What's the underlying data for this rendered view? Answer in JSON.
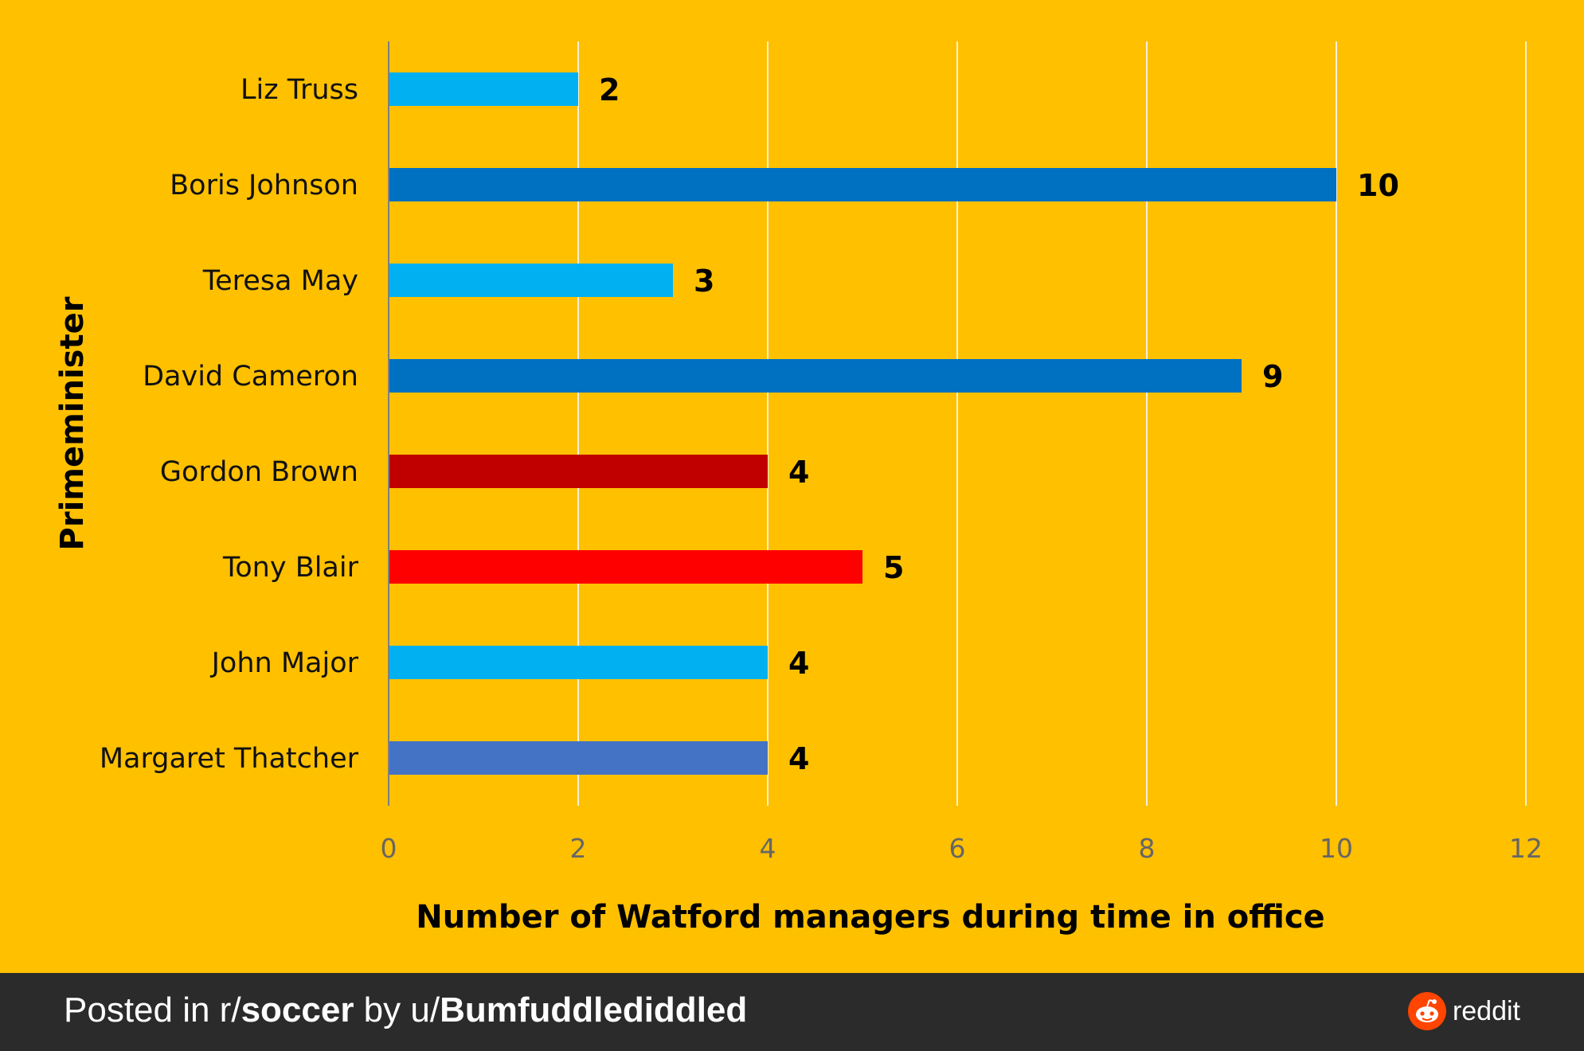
{
  "chart_data": {
    "type": "bar",
    "orientation": "horizontal",
    "categories": [
      "Liz Truss",
      "Boris Johnson",
      "Teresa May",
      "David Cameron",
      "Gordon Brown",
      "Tony Blair",
      "John Major",
      "Margaret Thatcher"
    ],
    "values": [
      2,
      10,
      3,
      9,
      4,
      5,
      4,
      4
    ],
    "colors": [
      "#00B0F0",
      "#0070C0",
      "#00B0F0",
      "#0070C0",
      "#C00000",
      "#FF0000",
      "#00B0F0",
      "#4472C4"
    ],
    "data_labels": [
      "2",
      "10",
      "3",
      "9",
      "4",
      "5",
      "4",
      "4"
    ],
    "xlabel": "Number of Watford managers during time in office",
    "ylabel": "Primeminister",
    "xlim": [
      0,
      12
    ],
    "x_ticks": [
      "0",
      "2",
      "4",
      "6",
      "8",
      "10",
      "12"
    ],
    "grid": "vertical",
    "background_color": "#FFC000"
  },
  "footer": {
    "posted_in": "Posted in r/",
    "subreddit": "soccer",
    "by": " by u/",
    "username": "Bumfuddlediddled",
    "brand": "reddit"
  }
}
